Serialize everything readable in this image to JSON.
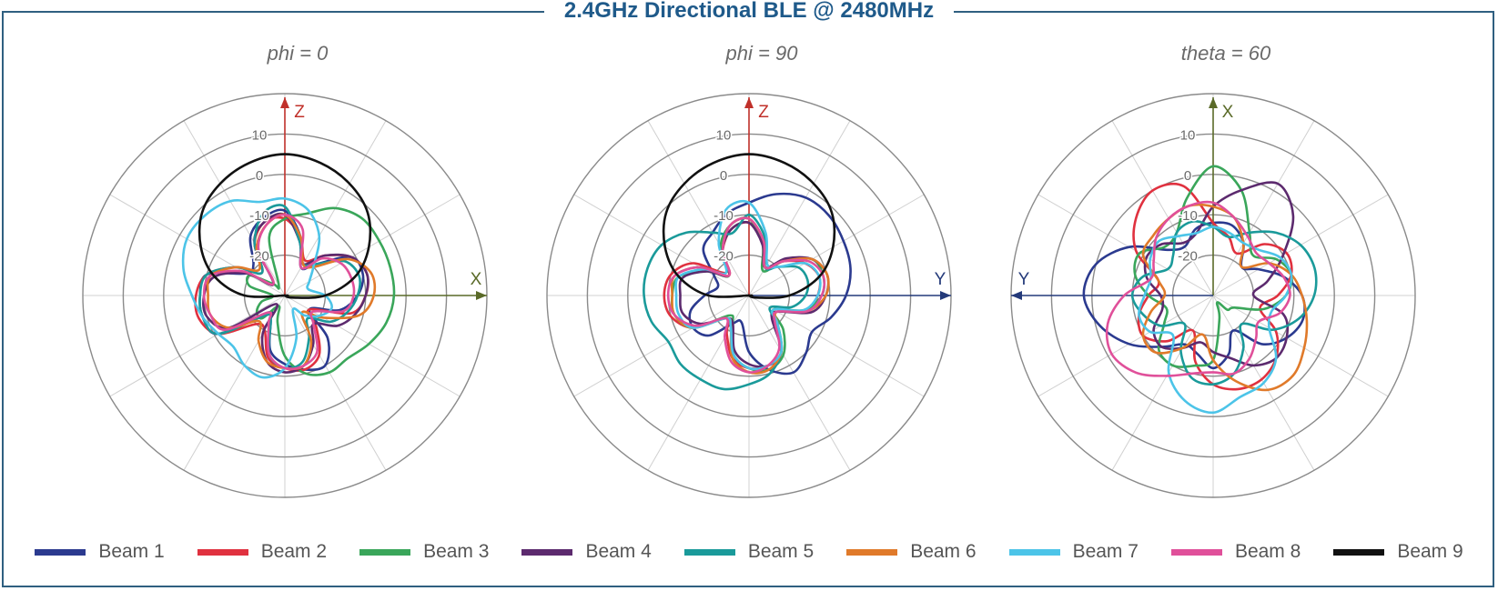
{
  "title": "2.4GHz Directional BLE @ 2480MHz",
  "panels": [
    {
      "title": "phi = 0",
      "axes": [
        {
          "label": "Z",
          "dir": "up",
          "color": "#c0302a"
        },
        {
          "label": "X",
          "dir": "right",
          "color": "#5a6a28"
        }
      ]
    },
    {
      "title": "phi = 90",
      "axes": [
        {
          "label": "Z",
          "dir": "up",
          "color": "#c0302a"
        },
        {
          "label": "Y",
          "dir": "right",
          "color": "#243a7a"
        }
      ]
    },
    {
      "title": "theta = 60",
      "axes": [
        {
          "label": "X",
          "dir": "up",
          "color": "#5a6a28"
        },
        {
          "label": "Y",
          "dir": "left",
          "color": "#243a7a"
        }
      ]
    }
  ],
  "legend": [
    {
      "label": "Beam 1",
      "color": "#2b3a8f"
    },
    {
      "label": "Beam 2",
      "color": "#e0313f"
    },
    {
      "label": "Beam 3",
      "color": "#3aa65a"
    },
    {
      "label": "Beam 4",
      "color": "#5c2a6e"
    },
    {
      "label": "Beam 5",
      "color": "#1a9a9a"
    },
    {
      "label": "Beam 6",
      "color": "#e07a2a"
    },
    {
      "label": "Beam 7",
      "color": "#4cc4e8"
    },
    {
      "label": "Beam 8",
      "color": "#e0509a"
    },
    {
      "label": "Beam 9",
      "color": "#111111"
    }
  ],
  "chart_data": [
    {
      "type": "polar-line",
      "title": "phi = 0",
      "r_unit": "dB",
      "r_range": [
        -30,
        20
      ],
      "r_ticks": [
        -20,
        -10,
        0,
        10
      ],
      "angle_step_deg": 30,
      "grid": true,
      "series": [
        {
          "name": "Beam 1",
          "r": [
            -9,
            -15,
            -22,
            -19,
            -11,
            -10,
            -12,
            -16,
            -23,
            -15,
            -10,
            -11,
            -13,
            -16,
            -23,
            -24,
            -11,
            -9,
            -9,
            -10,
            -19,
            -19,
            -13,
            -10
          ]
        },
        {
          "name": "Beam 2",
          "r": [
            -11,
            -15,
            -20,
            -16,
            -11,
            -9,
            -10,
            -13,
            -23,
            -19,
            -13,
            -11,
            -12,
            -14,
            -20,
            -20,
            -11,
            -8,
            -8,
            -10,
            -16,
            -22,
            -15,
            -11
          ]
        },
        {
          "name": "Beam 3",
          "r": [
            -11,
            -9,
            -5,
            -3,
            -3,
            -3,
            -3,
            -4,
            -6,
            -8,
            -8,
            -10,
            -15,
            -23,
            -27,
            -22,
            -22,
            -24,
            -27,
            -21,
            -20,
            -26,
            -27,
            -15
          ]
        },
        {
          "name": "Beam 4",
          "r": [
            -10,
            -16,
            -21,
            -16,
            -11,
            -9,
            -10,
            -12,
            -15,
            -20,
            -16,
            -12,
            -11,
            -13,
            -19,
            -27,
            -14,
            -10,
            -10,
            -12,
            -19,
            -26,
            -15,
            -11
          ]
        },
        {
          "name": "Beam 5",
          "r": [
            -8,
            -16,
            -21,
            -19,
            -13,
            -11,
            -12,
            -14,
            -17,
            -22,
            -18,
            -13,
            -12,
            -15,
            -23,
            -23,
            -11,
            -9,
            -9,
            -10,
            -16,
            -22,
            -15,
            -9
          ]
        },
        {
          "name": "Beam 6",
          "r": [
            -10,
            -15,
            -21,
            -20,
            -12,
            -8,
            -8,
            -11,
            -19,
            -24,
            -17,
            -12,
            -12,
            -13,
            -17,
            -21,
            -14,
            -11,
            -11,
            -11,
            -16,
            -21,
            -16,
            -12
          ]
        },
        {
          "name": "Beam 7",
          "r": [
            -6,
            -8,
            -13,
            -20,
            -23,
            -24,
            -20,
            -18,
            -20,
            -23,
            -26,
            -19,
            -12,
            -9,
            -10,
            -12,
            -11,
            -9,
            -7,
            -4,
            -2,
            -2,
            -3,
            -6
          ]
        },
        {
          "name": "Beam 8",
          "r": [
            -10,
            -13,
            -22,
            -17,
            -14,
            -13,
            -13,
            -15,
            -22,
            -20,
            -14,
            -12,
            -12,
            -15,
            -22,
            -24,
            -13,
            -11,
            -10,
            -11,
            -18,
            -26,
            -17,
            -12
          ]
        },
        {
          "name": "Beam 9",
          "r": [
            5,
            4,
            2,
            -1,
            -6,
            -12,
            -20,
            -28,
            -30,
            -30,
            -30,
            -30,
            -30,
            -30,
            -30,
            -30,
            -30,
            -30,
            -20,
            -12,
            -6,
            -1,
            2,
            4
          ]
        }
      ]
    },
    {
      "type": "polar-line",
      "title": "phi = 90",
      "r_unit": "dB",
      "r_range": [
        -30,
        20
      ],
      "r_ticks": [
        -20,
        -10,
        0,
        10
      ],
      "angle_step_deg": 30,
      "grid": true,
      "series": [
        {
          "name": "Beam 1",
          "r": [
            -7,
            -4,
            -2,
            -2,
            -3,
            -4,
            -6,
            -9,
            -12,
            -10,
            -8,
            -11,
            -16,
            -23,
            -22,
            -16,
            -14,
            -15,
            -19,
            -22,
            -20,
            -14,
            -12,
            -9
          ]
        },
        {
          "name": "Beam 2",
          "r": [
            -12,
            -16,
            -22,
            -18,
            -14,
            -12,
            -13,
            -15,
            -22,
            -20,
            -14,
            -12,
            -12,
            -14,
            -19,
            -22,
            -14,
            -10,
            -9,
            -10,
            -14,
            -22,
            -17,
            -13
          ]
        },
        {
          "name": "Beam 3",
          "r": [
            -11,
            -17,
            -23,
            -18,
            -12,
            -11,
            -12,
            -16,
            -23,
            -18,
            -13,
            -11,
            -12,
            -15,
            -22,
            -23,
            -14,
            -11,
            -11,
            -12,
            -18,
            -23,
            -16,
            -12
          ]
        },
        {
          "name": "Beam 4",
          "r": [
            -12,
            -17,
            -22,
            -17,
            -12,
            -10,
            -11,
            -14,
            -22,
            -22,
            -14,
            -12,
            -13,
            -16,
            -22,
            -22,
            -16,
            -13,
            -13,
            -13,
            -18,
            -23,
            -17,
            -13
          ]
        },
        {
          "name": "Beam 5",
          "r": [
            -10,
            -15,
            -22,
            -20,
            -16,
            -15,
            -16,
            -19,
            -24,
            -20,
            -14,
            -10,
            -8,
            -6,
            -6,
            -6,
            -7,
            -5,
            -4,
            -4,
            -5,
            -8,
            -12,
            -14
          ]
        },
        {
          "name": "Beam 6",
          "r": [
            -11,
            -16,
            -22,
            -18,
            -12,
            -10,
            -11,
            -15,
            -22,
            -20,
            -14,
            -11,
            -11,
            -14,
            -21,
            -22,
            -14,
            -11,
            -11,
            -11,
            -16,
            -23,
            -17,
            -12
          ]
        },
        {
          "name": "Beam 7",
          "r": [
            -7,
            -14,
            -21,
            -20,
            -14,
            -12,
            -13,
            -16,
            -23,
            -20,
            -14,
            -12,
            -12,
            -15,
            -21,
            -22,
            -14,
            -12,
            -12,
            -12,
            -17,
            -22,
            -15,
            -8
          ]
        },
        {
          "name": "Beam 8",
          "r": [
            -11,
            -16,
            -22,
            -18,
            -13,
            -11,
            -12,
            -15,
            -22,
            -21,
            -15,
            -12,
            -11,
            -13,
            -18,
            -22,
            -15,
            -11,
            -10,
            -11,
            -16,
            -23,
            -17,
            -12
          ]
        },
        {
          "name": "Beam 9",
          "r": [
            5,
            4,
            2,
            -1,
            -6,
            -12,
            -20,
            -28,
            -30,
            -30,
            -30,
            -30,
            -30,
            -30,
            -30,
            -30,
            -30,
            -30,
            -20,
            -12,
            -6,
            -1,
            2,
            4
          ]
        }
      ]
    },
    {
      "type": "polar-line",
      "title": "theta = 60",
      "r_unit": "dB",
      "r_range": [
        -30,
        20
      ],
      "r_ticks": [
        -20,
        -10,
        0,
        10
      ],
      "angle_step_deg": 30,
      "grid": true,
      "series": [
        {
          "name": "Beam 1",
          "r": [
            -12,
            -12,
            -15,
            -20,
            -17,
            -12,
            -8,
            -7,
            -9,
            -13,
            -20,
            -15,
            -12,
            -15,
            -16,
            -12,
            -6,
            -1,
            2,
            0,
            -6,
            -14,
            -16,
            -13
          ]
        },
        {
          "name": "Beam 2",
          "r": [
            -12,
            -15,
            -18,
            -12,
            -9,
            -10,
            -14,
            -18,
            -12,
            -8,
            -6,
            -6,
            -8,
            -13,
            -20,
            -14,
            -10,
            -11,
            -14,
            -16,
            -8,
            -3,
            0,
            -2
          ]
        },
        {
          "name": "Beam 3",
          "r": [
            2,
            -3,
            -12,
            -16,
            -12,
            -10,
            -12,
            -17,
            -24,
            -25,
            -28,
            -24,
            -14,
            -12,
            -10,
            -11,
            -16,
            -18,
            -14,
            -10,
            -9,
            -13,
            -12,
            -5
          ]
        },
        {
          "name": "Beam 4",
          "r": [
            -8,
            -3,
            2,
            -2,
            -10,
            -16,
            -20,
            -12,
            -9,
            -8,
            -10,
            -14,
            -16,
            -18,
            -15,
            -12,
            -13,
            -17,
            -17,
            -13,
            -11,
            -12,
            -15,
            -14
          ]
        },
        {
          "name": "Beam 5",
          "r": [
            -13,
            -15,
            -12,
            -8,
            -5,
            -4,
            -5,
            -8,
            -13,
            -20,
            -15,
            -10,
            -8,
            -9,
            -14,
            -20,
            -15,
            -12,
            -10,
            -12,
            -17,
            -16,
            -12,
            -11
          ]
        },
        {
          "name": "Beam 6",
          "r": [
            -8,
            -10,
            -15,
            -20,
            -14,
            -10,
            -8,
            -6,
            -4,
            -2,
            -3,
            -8,
            -14,
            -20,
            -15,
            -10,
            -10,
            -14,
            -18,
            -16,
            -10,
            -9,
            -8,
            -7
          ]
        },
        {
          "name": "Beam 7",
          "r": [
            -13,
            -14,
            -15,
            -14,
            -11,
            -10,
            -12,
            -15,
            -14,
            -8,
            -5,
            -4,
            -1,
            -3,
            -8,
            -16,
            -12,
            -11,
            -13,
            -14,
            -12,
            -11,
            -13,
            -14
          ]
        },
        {
          "name": "Beam 8",
          "r": [
            -7,
            -10,
            -13,
            -15,
            -14,
            -12,
            -11,
            -13,
            -17,
            -15,
            -12,
            -10,
            -11,
            -10,
            -7,
            -3,
            -1,
            -3,
            -8,
            -14,
            -13,
            -10,
            -8,
            -7
          ]
        },
        {
          "name": "Beam 9",
          "r": []
        }
      ]
    }
  ]
}
